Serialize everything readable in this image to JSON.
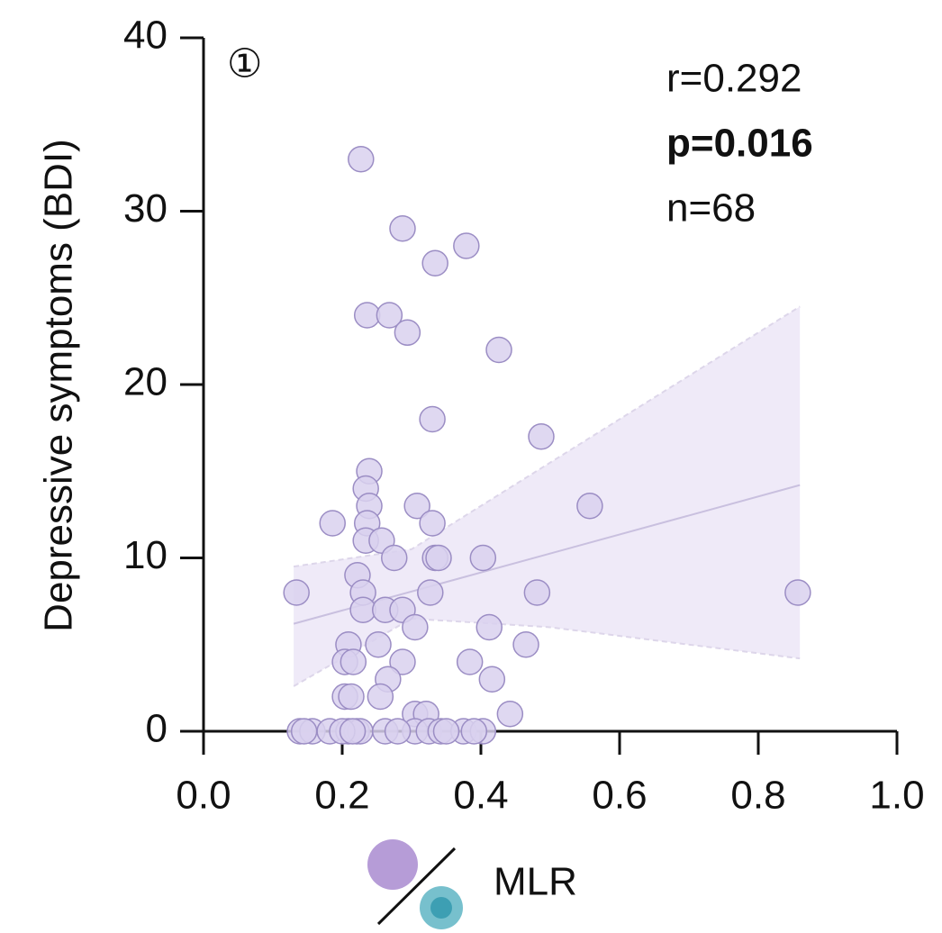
{
  "chart_data": {
    "type": "scatter",
    "ylabel": "Depressive symptoms (BDI)",
    "xlabel": "MLR",
    "annotations": [
      "①",
      "r=0.292",
      "p=0.016",
      "n=68"
    ],
    "x": [
      0.227,
      0.287,
      0.379,
      0.334,
      0.236,
      0.268,
      0.294,
      0.426,
      0.33,
      0.487,
      0.239,
      0.234,
      0.239,
      0.308,
      0.557,
      0.186,
      0.236,
      0.33,
      0.234,
      0.257,
      0.275,
      0.334,
      0.339,
      0.403,
      0.222,
      0.134,
      0.23,
      0.327,
      0.481,
      0.857,
      0.23,
      0.262,
      0.287,
      0.305,
      0.412,
      0.209,
      0.252,
      0.465,
      0.287,
      0.204,
      0.216,
      0.384,
      0.266,
      0.416,
      0.204,
      0.213,
      0.255,
      0.305,
      0.321,
      0.442,
      0.139,
      0.157,
      0.182,
      0.209,
      0.221,
      0.226,
      0.262,
      0.305,
      0.325,
      0.342,
      0.375,
      0.403,
      0.145,
      0.2,
      0.215,
      0.35,
      0.39,
      0.28
    ],
    "values": [
      33,
      29,
      28,
      27,
      24,
      24,
      23,
      22,
      18,
      17,
      15,
      14,
      13,
      13,
      13,
      12,
      12,
      12,
      11,
      11,
      10,
      10,
      10,
      10,
      9,
      8,
      8,
      8,
      8,
      8,
      7,
      7,
      7,
      6,
      6,
      5,
      5,
      5,
      4,
      4,
      4,
      4,
      3,
      3,
      2,
      2,
      2,
      1,
      1,
      1,
      0,
      0,
      0,
      0,
      0,
      0,
      0,
      0,
      0,
      0,
      0,
      0,
      0,
      0,
      0,
      0,
      0,
      0
    ],
    "color": "#d9d1ee",
    "edgecolor": "#9b8dc4",
    "fit": {
      "x": [
        0.13,
        0.86
      ],
      "y": [
        6.2,
        14.2
      ],
      "color": "#c9c0df"
    },
    "ci": {
      "x": [
        0.13,
        0.3,
        0.5,
        0.86
      ],
      "upper": [
        9.5,
        10.5,
        15.5,
        24.5
      ],
      "lower": [
        2.6,
        6.5,
        6.0,
        4.2
      ],
      "color": "#efeaf8"
    },
    "xlim": [
      0,
      1
    ],
    "ylim": [
      0,
      40
    ],
    "xticks": [
      {
        "value": 0,
        "label": "0.0"
      },
      0.2,
      0.4,
      0.6,
      0.8,
      {
        "value": 1,
        "label": "1.0"
      }
    ],
    "yticks": [
      0,
      10,
      20,
      30,
      40
    ]
  }
}
